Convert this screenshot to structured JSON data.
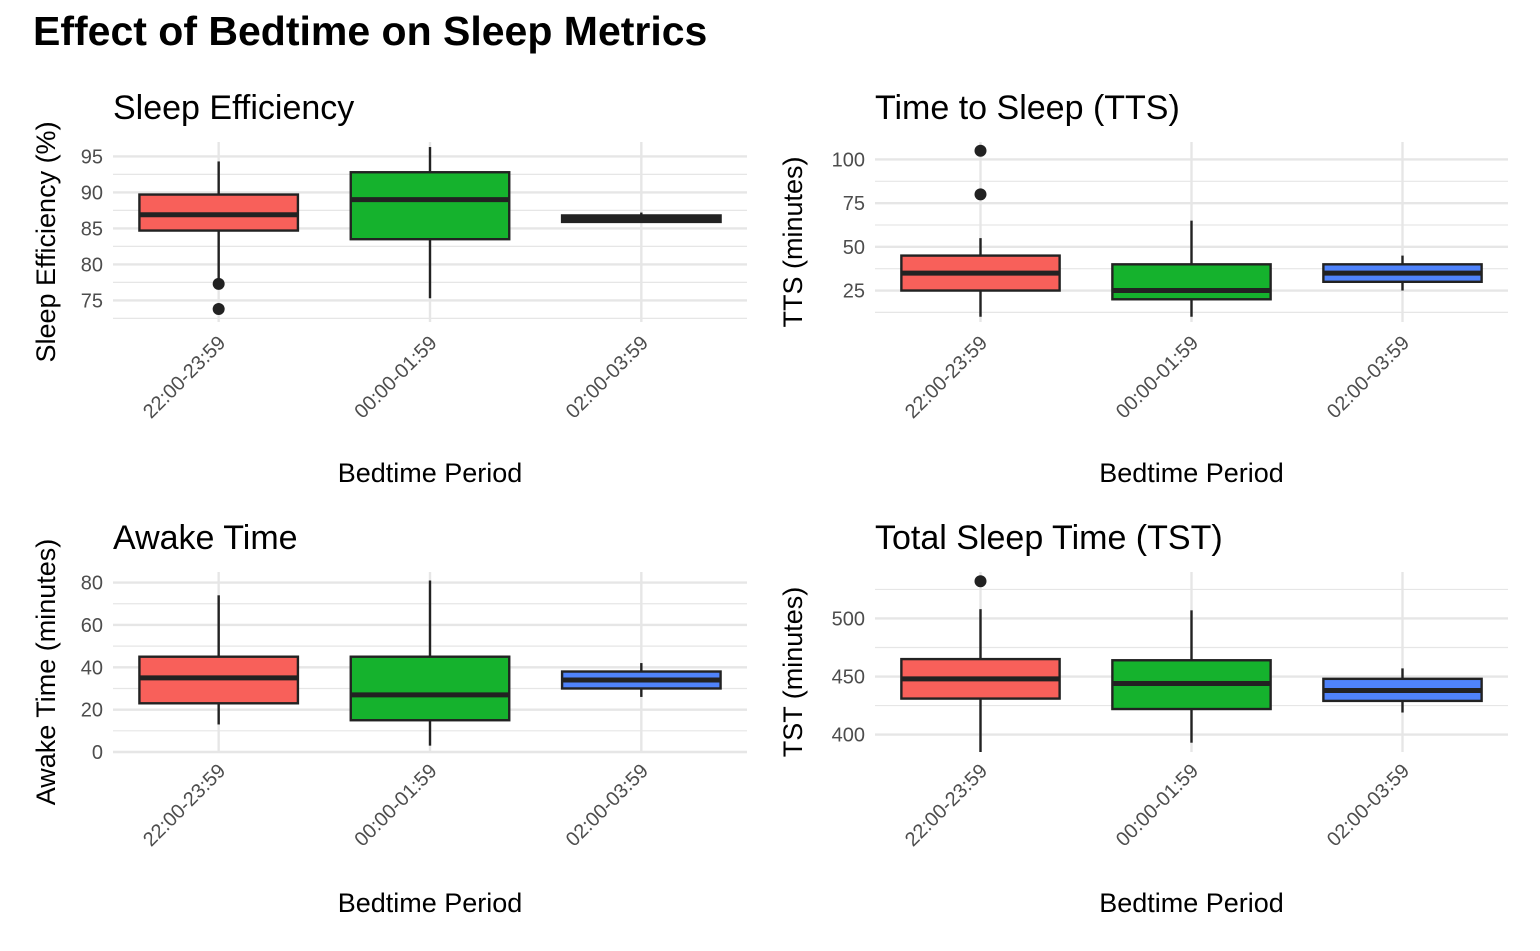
{
  "title": "Effect of Bedtime on Sleep Metrics",
  "colors": {
    "22:00-23:59": "#F8605A",
    "00:00-01:59": "#15B22D",
    "02:00-03:59": "#4F83FB",
    "box_stroke": "#222222",
    "grid": "#E6E6E6",
    "tick_text": "#4D4D4D"
  },
  "chart_data": [
    {
      "type": "box",
      "title": "Sleep Efficiency",
      "xlabel": "Bedtime Period",
      "ylabel": "Sleep Efficiency (%)",
      "categories": [
        "22:00-23:59",
        "00:00-01:59",
        "02:00-03:59"
      ],
      "yticks": [
        75,
        80,
        85,
        90,
        95
      ],
      "ylim": [
        72,
        97
      ],
      "grid": true,
      "boxes": [
        {
          "category": "22:00-23:59",
          "whisker_low": 78,
          "q1": 84.7,
          "median": 86.9,
          "q3": 89.7,
          "whisker_high": 94.3,
          "outliers": [
            77.3,
            73.8
          ]
        },
        {
          "category": "00:00-01:59",
          "whisker_low": 75.3,
          "q1": 83.5,
          "median": 89.0,
          "q3": 92.8,
          "whisker_high": 96.3,
          "outliers": []
        },
        {
          "category": "02:00-03:59",
          "whisker_low": 85.8,
          "q1": 85.9,
          "median": 86.3,
          "q3": 86.8,
          "whisker_high": 87.2,
          "outliers": []
        }
      ]
    },
    {
      "type": "box",
      "title": "Time to Sleep (TTS)",
      "xlabel": "Bedtime Period",
      "ylabel": "TTS (minutes)",
      "categories": [
        "22:00-23:59",
        "00:00-01:59",
        "02:00-03:59"
      ],
      "yticks": [
        25,
        50,
        75,
        100
      ],
      "ylim": [
        7,
        110
      ],
      "grid": true,
      "boxes": [
        {
          "category": "22:00-23:59",
          "whisker_low": 10,
          "q1": 25,
          "median": 35,
          "q3": 45,
          "whisker_high": 55,
          "outliers": [
            80,
            105
          ]
        },
        {
          "category": "00:00-01:59",
          "whisker_low": 10,
          "q1": 20,
          "median": 25,
          "q3": 40,
          "whisker_high": 65,
          "outliers": []
        },
        {
          "category": "02:00-03:59",
          "whisker_low": 25,
          "q1": 30,
          "median": 35,
          "q3": 40,
          "whisker_high": 45,
          "outliers": []
        }
      ]
    },
    {
      "type": "box",
      "title": "Awake Time",
      "xlabel": "Bedtime Period",
      "ylabel": "Awake Time (minutes)",
      "categories": [
        "22:00-23:59",
        "00:00-01:59",
        "02:00-03:59"
      ],
      "yticks": [
        0,
        20,
        40,
        60,
        80
      ],
      "ylim": [
        0,
        85
      ],
      "grid": true,
      "boxes": [
        {
          "category": "22:00-23:59",
          "whisker_low": 13,
          "q1": 23,
          "median": 35,
          "q3": 45,
          "whisker_high": 74,
          "outliers": []
        },
        {
          "category": "00:00-01:59",
          "whisker_low": 3,
          "q1": 15,
          "median": 27,
          "q3": 45,
          "whisker_high": 81,
          "outliers": []
        },
        {
          "category": "02:00-03:59",
          "whisker_low": 26,
          "q1": 30,
          "median": 34,
          "q3": 38,
          "whisker_high": 42,
          "outliers": []
        }
      ]
    },
    {
      "type": "box",
      "title": "Total Sleep Time (TST)",
      "xlabel": "Bedtime Period",
      "ylabel": "TST (minutes)",
      "categories": [
        "22:00-23:59",
        "00:00-01:59",
        "02:00-03:59"
      ],
      "yticks": [
        400,
        450,
        500
      ],
      "ylim": [
        385,
        540
      ],
      "grid": true,
      "boxes": [
        {
          "category": "22:00-23:59",
          "whisker_low": 385,
          "q1": 431,
          "median": 448,
          "q3": 465,
          "whisker_high": 508,
          "outliers": [
            532
          ]
        },
        {
          "category": "00:00-01:59",
          "whisker_low": 393,
          "q1": 422,
          "median": 444,
          "q3": 464,
          "whisker_high": 507,
          "outliers": []
        },
        {
          "category": "02:00-03:59",
          "whisker_low": 419,
          "q1": 429,
          "median": 438,
          "q3": 448,
          "whisker_high": 457,
          "outliers": []
        }
      ]
    }
  ]
}
